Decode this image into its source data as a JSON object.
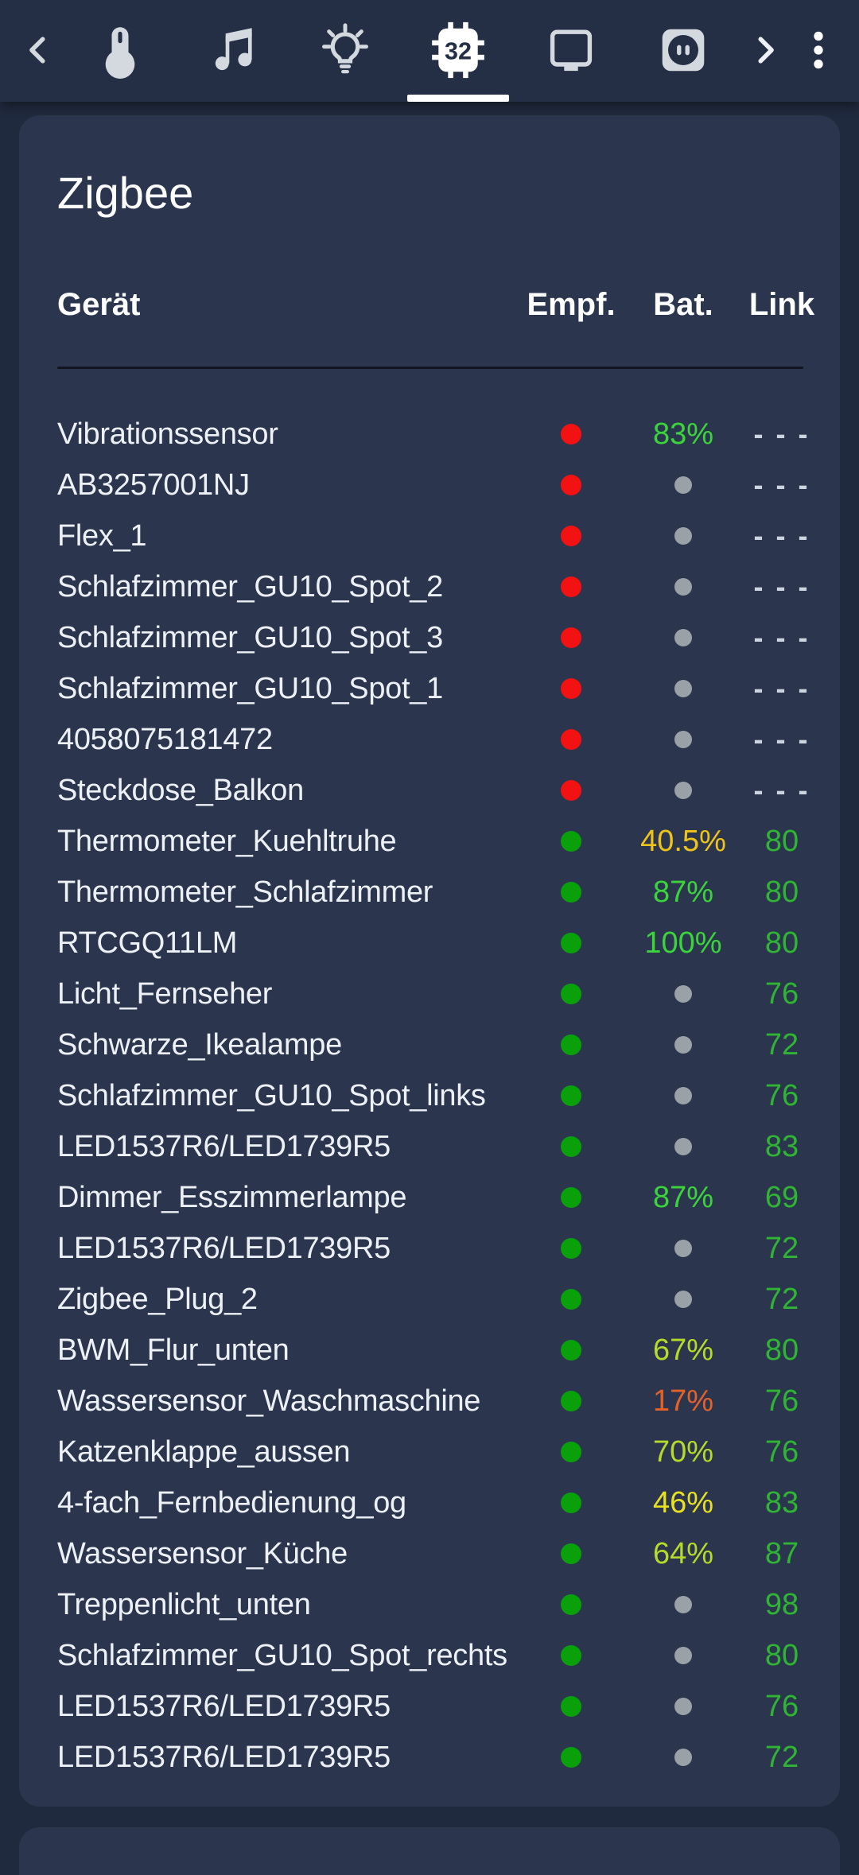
{
  "topbar": {
    "chip_label": "32",
    "active_tab": "chip-32",
    "tabs": [
      {
        "icon": "thermometer-icon"
      },
      {
        "icon": "music-note-icon"
      },
      {
        "icon": "lightbulb-on-icon"
      },
      {
        "icon": "chip-32-icon",
        "active": true
      },
      {
        "icon": "display-icon"
      },
      {
        "icon": "power-outlet-icon"
      }
    ]
  },
  "card": {
    "title": "Zigbee",
    "columns": [
      "Gerät",
      "Empf.",
      "Bat.",
      "Link"
    ],
    "no_link_text": "- - -",
    "rows": [
      {
        "name": "Vibrationssensor",
        "online": false,
        "bat": "83%",
        "bat_color": "bat_green",
        "link": null
      },
      {
        "name": "AB3257001NJ",
        "online": false,
        "bat": null,
        "bat_color": null,
        "link": null
      },
      {
        "name": "Flex_1",
        "online": false,
        "bat": null,
        "bat_color": null,
        "link": null
      },
      {
        "name": "Schlafzimmer_GU10_Spot_2",
        "online": false,
        "bat": null,
        "bat_color": null,
        "link": null
      },
      {
        "name": "Schlafzimmer_GU10_Spot_3",
        "online": false,
        "bat": null,
        "bat_color": null,
        "link": null
      },
      {
        "name": "Schlafzimmer_GU10_Spot_1",
        "online": false,
        "bat": null,
        "bat_color": null,
        "link": null
      },
      {
        "name": "4058075181472",
        "online": false,
        "bat": null,
        "bat_color": null,
        "link": null
      },
      {
        "name": "Steckdose_Balkon",
        "online": false,
        "bat": null,
        "bat_color": null,
        "link": null
      },
      {
        "name": "Thermometer_Kuehltruhe",
        "online": true,
        "bat": "40.5%",
        "bat_color": "bat_gold",
        "link": "80"
      },
      {
        "name": "Thermometer_Schlafzimmer",
        "online": true,
        "bat": "87%",
        "bat_color": "bat_green",
        "link": "80"
      },
      {
        "name": "RTCGQ11LM",
        "online": true,
        "bat": "100%",
        "bat_color": "bat_green",
        "link": "80"
      },
      {
        "name": "Licht_Fernseher",
        "online": true,
        "bat": null,
        "bat_color": null,
        "link": "76"
      },
      {
        "name": "Schwarze_Ikealampe",
        "online": true,
        "bat": null,
        "bat_color": null,
        "link": "72"
      },
      {
        "name": "Schlafzimmer_GU10_Spot_links",
        "online": true,
        "bat": null,
        "bat_color": null,
        "link": "76"
      },
      {
        "name": "LED1537R6/LED1739R5",
        "online": true,
        "bat": null,
        "bat_color": null,
        "link": "83"
      },
      {
        "name": "Dimmer_Esszimmerlampe",
        "online": true,
        "bat": "87%",
        "bat_color": "bat_green",
        "link": "69"
      },
      {
        "name": "LED1537R6/LED1739R5",
        "online": true,
        "bat": null,
        "bat_color": null,
        "link": "72"
      },
      {
        "name": "Zigbee_Plug_2",
        "online": true,
        "bat": null,
        "bat_color": null,
        "link": "72"
      },
      {
        "name": "BWM_Flur_unten",
        "online": true,
        "bat": "67%",
        "bat_color": "bat_lime",
        "link": "80"
      },
      {
        "name": "Wassersensor_Waschmaschine",
        "online": true,
        "bat": "17%",
        "bat_color": "bat_orange",
        "link": "76"
      },
      {
        "name": "Katzenklappe_aussen",
        "online": true,
        "bat": "70%",
        "bat_color": "bat_lime",
        "link": "76"
      },
      {
        "name": "4-fach_Fernbedienung_og",
        "online": true,
        "bat": "46%",
        "bat_color": "bat_yellow",
        "link": "83"
      },
      {
        "name": "Wassersensor_Küche",
        "online": true,
        "bat": "64%",
        "bat_color": "bat_lime",
        "link": "87"
      },
      {
        "name": "Treppenlicht_unten",
        "online": true,
        "bat": null,
        "bat_color": null,
        "link": "98"
      },
      {
        "name": "Schlafzimmer_GU10_Spot_rechts",
        "online": true,
        "bat": null,
        "bat_color": null,
        "link": "80"
      },
      {
        "name": "LED1537R6/LED1739R5",
        "online": true,
        "bat": null,
        "bat_color": null,
        "link": "76"
      },
      {
        "name": "LED1537R6/LED1739R5",
        "online": true,
        "bat": null,
        "bat_color": null,
        "link": "72"
      }
    ]
  },
  "palette": {
    "topbar_bg": "#242e45",
    "page_bg": "#202a3e",
    "card_bg": "#2b364e",
    "icon_grey": "#d4d8df",
    "icon_active": "#ffffff",
    "dot_red": "#f31111",
    "dot_green": "#0aa00a",
    "dot_grey": "#9aa1a9",
    "bat_green": "#3bd43b",
    "bat_lime": "#b5da2a",
    "bat_yellow": "#e8e11f",
    "bat_gold": "#eec31a",
    "bat_orange": "#e4612a",
    "link_green": "#30b434",
    "dash_grey": "#ccd4df"
  }
}
